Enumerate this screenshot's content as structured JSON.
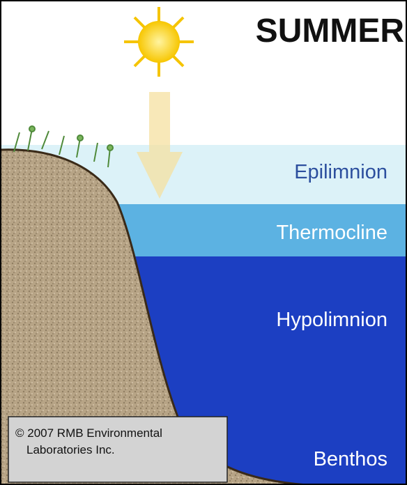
{
  "title": "SUMMER",
  "layers": [
    {
      "label": "Epilimnion"
    },
    {
      "label": "Thermocline"
    },
    {
      "label": "Hypolimnion"
    },
    {
      "label": "Benthos"
    }
  ],
  "copyright": {
    "lines": [
      "© 2007 RMB Environmental",
      "Laboratories Inc."
    ]
  }
}
